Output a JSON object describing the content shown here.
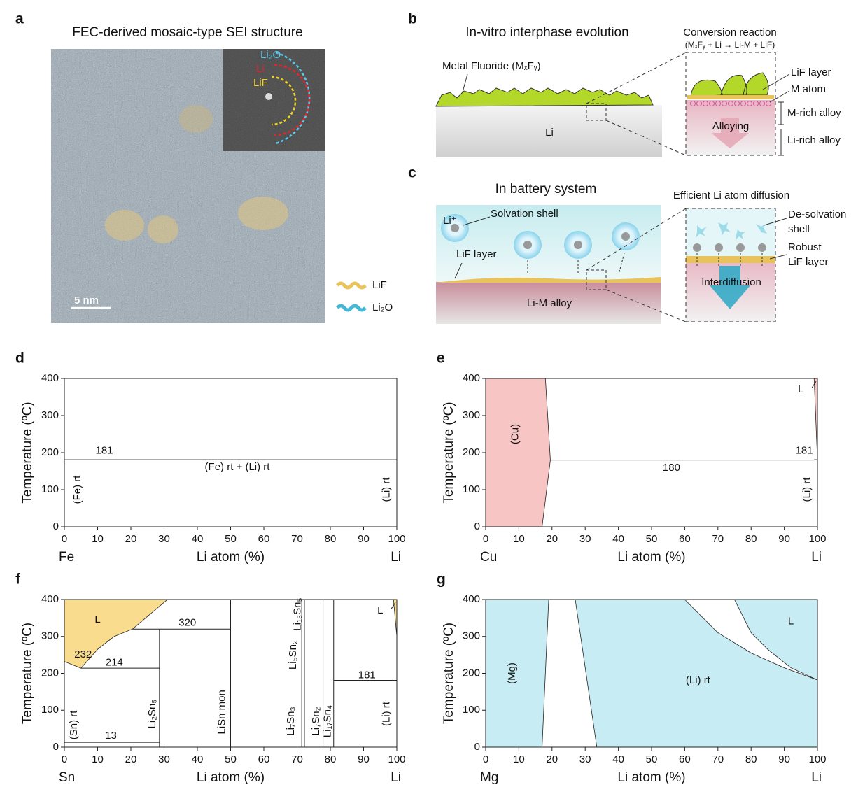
{
  "panels": {
    "a": {
      "label": "a",
      "title": "FEC-derived mosaic-type SEI structure",
      "inset": [
        "Li₂O",
        "Li",
        "LiF"
      ],
      "scale_bar": "5 nm",
      "legend": [
        "LiF",
        "Li₂O"
      ]
    },
    "b": {
      "label": "b",
      "title": "In-vitro interphase evolution",
      "coating": "Metal Fluoride (MₓFᵧ)",
      "substrate": "Li",
      "zoom_title": "Conversion reaction",
      "reaction": "(MₓFᵧ + Li → Li-M + LiF)",
      "zoom_labels": [
        "LiF layer",
        "M atom",
        "M-rich alloy",
        "Alloying",
        "Li-rich alloy"
      ]
    },
    "c": {
      "label": "c",
      "title": "In battery system",
      "ion": "Li⁺",
      "shell": "Solvation shell",
      "layer": "LiF layer",
      "substrate": "Li-M alloy",
      "zoom_title": "Efficient Li atom diffusion",
      "zoom_labels": [
        "De-solvation",
        "shell",
        "Robust",
        "LiF layer",
        "Interdiffusion"
      ]
    }
  },
  "chart_data": [
    {
      "type": "phase",
      "label": "d",
      "xlabel": "Li atom (%)",
      "ylabel": "Temperature (ºC)",
      "left": "Fe",
      "right": "Li",
      "xlim": [
        0,
        100
      ],
      "ylim": [
        0,
        400
      ],
      "xticks": [
        0,
        10,
        20,
        30,
        40,
        50,
        60,
        70,
        80,
        90,
        100
      ],
      "yticks": [
        0,
        100,
        200,
        300,
        400
      ],
      "regions": [],
      "isotherms": [
        {
          "value": 181,
          "x": [
            0,
            100
          ]
        }
      ],
      "points": [],
      "compounds": [],
      "phases": [
        "(Fe) rt",
        "(Fe) rt + (Li) rt",
        "(Li) rt"
      ]
    },
    {
      "type": "phase",
      "label": "e",
      "xlabel": "Li atom (%)",
      "ylabel": "Temperature (ºC)",
      "left": "Cu",
      "right": "Li",
      "xlim": [
        0,
        100
      ],
      "ylim": [
        0,
        400
      ],
      "xticks": [
        0,
        10,
        20,
        30,
        40,
        50,
        60,
        70,
        80,
        90,
        100
      ],
      "yticks": [
        0,
        100,
        200,
        300,
        400
      ],
      "regions": [
        {
          "color": "#f8c5c5",
          "x": [
            0,
            17,
            19.5,
            18,
            0
          ],
          "y": [
            0,
            0,
            180,
            400,
            400
          ]
        },
        {
          "color": "#f8c5c5",
          "x": [
            99,
            100,
            100
          ],
          "y": [
            400,
            400,
            181
          ]
        }
      ],
      "isotherms": [
        {
          "value": 180,
          "x": [
            19.5,
            99
          ]
        },
        {
          "value": 181,
          "x": [
            99,
            100
          ]
        }
      ],
      "points": [],
      "compounds": [],
      "phases": [
        "(Cu)",
        "L",
        "(Li) rt"
      ]
    },
    {
      "type": "phase",
      "label": "f",
      "xlabel": "Li atom (%)",
      "ylabel": "Temperature (ºC)",
      "left": "Sn",
      "right": "Li",
      "xlim": [
        0,
        100
      ],
      "ylim": [
        0,
        400
      ],
      "xticks": [
        0,
        10,
        20,
        30,
        40,
        50,
        60,
        70,
        80,
        90,
        100
      ],
      "yticks": [
        0,
        100,
        200,
        300,
        400
      ],
      "regions": [
        {
          "color": "#f9dc8e",
          "x": [
            0,
            0,
            5,
            10,
            15,
            20.5,
            31
          ],
          "y": [
            400,
            232,
            214,
            265,
            300,
            320,
            400
          ]
        },
        {
          "color": "#f9dc8e",
          "x": [
            99,
            100,
            100
          ],
          "y": [
            400,
            400,
            300
          ]
        }
      ],
      "isotherms": [
        {
          "value": 320,
          "x": [
            20.5,
            50
          ]
        },
        {
          "value": 214,
          "x": [
            5,
            28.6
          ]
        },
        {
          "value": 181,
          "x": [
            81,
            100
          ]
        },
        {
          "value": 13,
          "x": [
            0,
            28.6
          ]
        }
      ],
      "points": [
        {
          "value": 232,
          "x": 0
        }
      ],
      "compounds": [
        {
          "name": "Li₂Sn₅",
          "x": 28.6,
          "y": [
            0,
            320
          ]
        },
        {
          "name": "LiSn mon",
          "x": 50,
          "y": [
            0,
            400
          ]
        },
        {
          "name": "Li₇Sn₃",
          "x": 70,
          "y": [
            0,
            400
          ]
        },
        {
          "name": "Li₅Sn₂",
          "x": 71.4,
          "y": [
            0,
            400
          ]
        },
        {
          "name": "Li₁₃Sn₅",
          "x": 72.2,
          "y": [
            0,
            400
          ]
        },
        {
          "name": "Li₇Sn₂",
          "x": 77.8,
          "y": [
            0,
            400
          ]
        },
        {
          "name": "Li₁₇Sn₄",
          "x": 81,
          "y": [
            0,
            400
          ]
        }
      ],
      "phases": [
        "L",
        "(Sn) rt",
        "L",
        "(Li) rt"
      ]
    },
    {
      "type": "phase",
      "label": "g",
      "xlabel": "Li atom (%)",
      "ylabel": "Temperature (ºC)",
      "left": "Mg",
      "right": "Li",
      "xlim": [
        0,
        100
      ],
      "ylim": [
        0,
        400
      ],
      "xticks": [
        0,
        10,
        20,
        30,
        40,
        50,
        60,
        70,
        80,
        90,
        100
      ],
      "yticks": [
        0,
        100,
        200,
        300,
        400
      ],
      "regions": [
        {
          "color": "#c8ecf4",
          "x": [
            0,
            17,
            18,
            19,
            0
          ],
          "y": [
            0,
            0,
            200,
            400,
            400
          ]
        },
        {
          "color": "#c8ecf4",
          "x": [
            27,
            33.5,
            100,
            100,
            90,
            80,
            70,
            60
          ],
          "y": [
            400,
            0,
            0,
            182,
            215,
            255,
            310,
            400
          ]
        },
        {
          "color": "#c8ecf4",
          "x": [
            75,
            100,
            100,
            92,
            85,
            80
          ],
          "y": [
            400,
            400,
            182,
            215,
            265,
            310
          ]
        }
      ],
      "isotherms": [],
      "points": [],
      "compounds": [],
      "phases": [
        "(Mg)",
        "L",
        "(Li) rt"
      ]
    }
  ]
}
